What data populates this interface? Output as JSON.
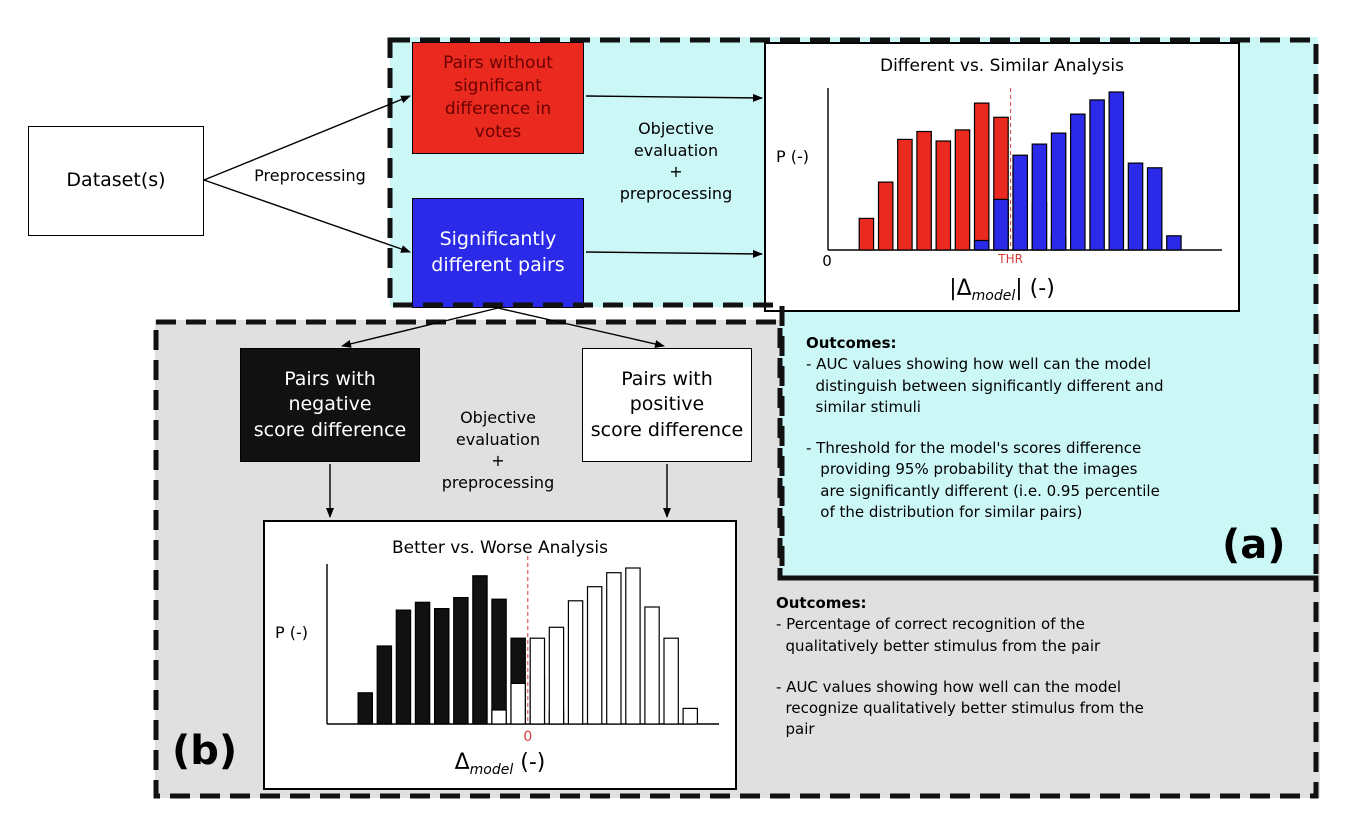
{
  "nodes": {
    "dataset": "Dataset(s)",
    "no_sig_pairs": "Pairs without\nsignificant\ndifference in\nvotes",
    "sig_pairs": "Significantly\ndifferent pairs",
    "neg_pairs": "Pairs with\nnegative\nscore difference",
    "pos_pairs": "Pairs with\npositive\nscore difference"
  },
  "edge_labels": {
    "preprocessing": "Preprocessing",
    "objective_eval_a": "Objective\nevaluation\n+\npreprocessing",
    "objective_eval_b": "Objective\nevaluation\n+\npreprocessing"
  },
  "region_tags": {
    "a": "(a)",
    "b": "(b)"
  },
  "outcomes_a": {
    "heading": "Outcomes:",
    "items": [
      "- AUC values showing how well can the model\n  distinguish between significantly different and\n  similar stimuli",
      "- Threshold for the model's scores difference\n   providing 95% probability that the images\n   are significantly different (i.e. 0.95 percentile\n   of the distribution for similar pairs)"
    ]
  },
  "outcomes_b": {
    "heading": "Outcomes:",
    "items": [
      "- Percentage of correct recognition of the\n  qualitatively better stimulus from the pair",
      "- AUC values showing how well can the model\n  recognize qualitatively better stimulus from the\n  pair"
    ]
  },
  "colors": {
    "red": "#ea2a1e",
    "blue": "#2a2ae8",
    "black": "#111111",
    "white": "#ffffff",
    "threshold": "#d43c3c"
  },
  "chart_data": [
    {
      "type": "bar",
      "title": "Different vs. Similar Analysis",
      "ylabel": "P (-)",
      "xlabel_main": "|Δ",
      "xlabel_sub": "model",
      "xlabel_tail": "| (-)",
      "origin_label": "0",
      "marker_label": "THR",
      "marker_x": 8.5,
      "xlim": [
        -1,
        19.5
      ],
      "ylim": [
        0,
        100
      ],
      "bar_width": 0.75,
      "series": [
        {
          "fill": "#ea2a1e",
          "x": [
            1,
            2,
            3,
            4,
            5,
            6,
            7,
            8,
            9,
            10,
            11
          ],
          "values": [
            20,
            43,
            70,
            75,
            69,
            76,
            93,
            84,
            52,
            30,
            9
          ]
        },
        {
          "fill": "#2a2ae8",
          "x": [
            7,
            8,
            9,
            10,
            11,
            12,
            13,
            14,
            15,
            16,
            17
          ],
          "values": [
            6,
            32,
            60,
            67,
            74,
            86,
            95,
            100,
            55,
            52,
            9
          ]
        }
      ]
    },
    {
      "type": "bar",
      "title": "Better vs. Worse Analysis",
      "ylabel": "P (-)",
      "xlabel_main": "Δ",
      "xlabel_sub": "model",
      "xlabel_tail": " (-)",
      "origin_label": "0",
      "marker_x": 9.5,
      "xlim": [
        -1,
        19.5
      ],
      "ylim": [
        0,
        100
      ],
      "bar_width": 0.75,
      "series": [
        {
          "fill": "#111111",
          "x": [
            1,
            2,
            3,
            4,
            5,
            6,
            7,
            8,
            9,
            10,
            11
          ],
          "values": [
            20,
            50,
            73,
            78,
            74,
            81,
            95,
            80,
            55,
            31,
            9
          ]
        },
        {
          "fill": "#ffffff",
          "x": [
            8,
            9,
            10,
            11,
            12,
            13,
            14,
            15,
            16,
            17,
            18
          ],
          "values": [
            9,
            26,
            55,
            62,
            79,
            88,
            97,
            100,
            75,
            55,
            10
          ]
        }
      ]
    }
  ]
}
